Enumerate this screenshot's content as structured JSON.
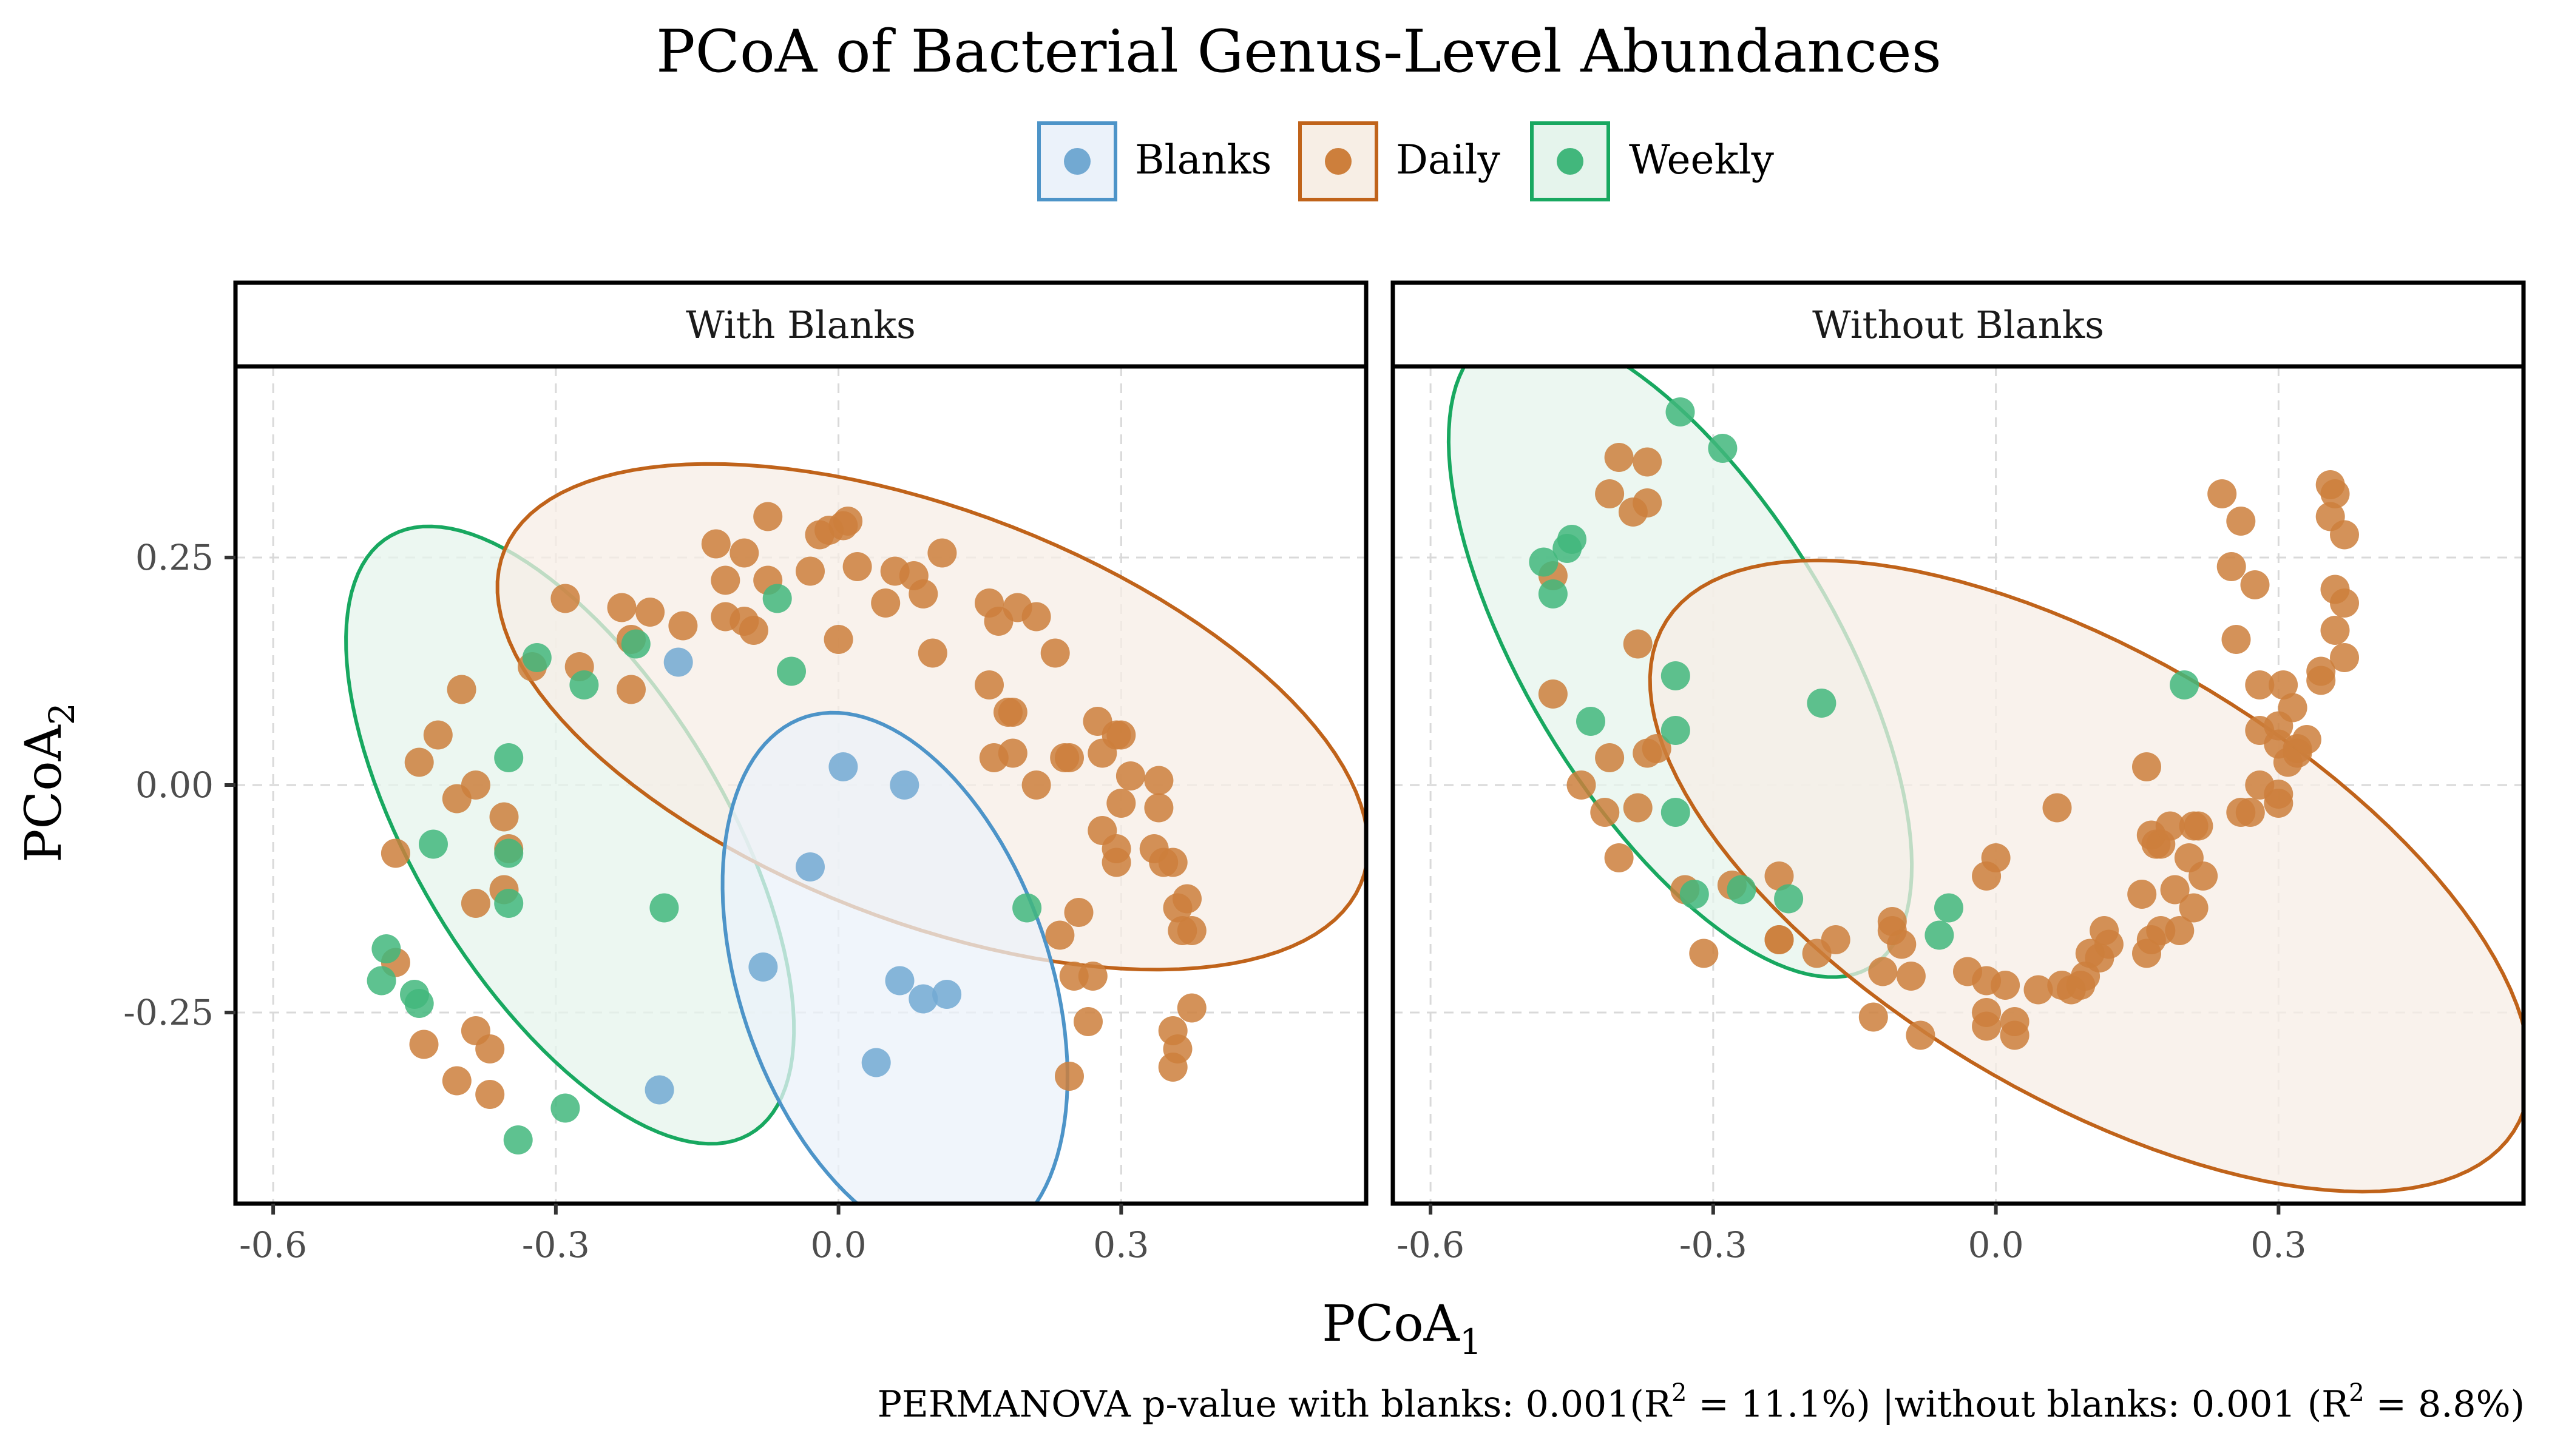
{
  "chart_data": {
    "type": "scatter",
    "title": "PCoA of Bacterial Genus-Level Abundances",
    "xlabel": "PCoA",
    "xlabel_sub": "1",
    "ylabel": "PCoA",
    "ylabel_sub": "2",
    "legend_position": "top",
    "grid": true,
    "xlim": [
      -0.64,
      0.56
    ],
    "ylim": [
      -0.46,
      0.46
    ],
    "x_ticks": [
      -0.6,
      -0.3,
      0.0,
      0.3
    ],
    "x_tick_labels": [
      "-0.6",
      "-0.3",
      "0.0",
      "0.3"
    ],
    "y_ticks": [
      -0.25,
      0.0,
      0.25
    ],
    "y_tick_labels": [
      "-0.25",
      "0.00",
      "0.25"
    ],
    "groups": [
      {
        "name": "Blanks",
        "color": "#4D94C8",
        "point_color": "#72A9D2",
        "fill": "#EBF2FA"
      },
      {
        "name": "Daily",
        "color": "#C0631A",
        "point_color": "#CD7F3C",
        "fill": "#F7EEE5"
      },
      {
        "name": "Weekly",
        "color": "#18A860",
        "point_color": "#42B77C",
        "fill": "#E5F4EC"
      }
    ],
    "caption": {
      "prefix": "PERMANOVA p-value with blanks: 0.001(R",
      "sup1": "2",
      "mid": " = 11.1%) |without blanks: 0.001 (R",
      "sup2": "2",
      "suffix": " = 8.8%)"
    },
    "panels": [
      {
        "label": "With Blanks",
        "ellipses": [
          {
            "group": "Weekly",
            "cx": -0.285,
            "cy": -0.055,
            "rx": 0.38,
            "ry": 0.165,
            "angle_deg": -60
          },
          {
            "group": "Daily",
            "cx": 0.1,
            "cy": 0.075,
            "rx": 0.49,
            "ry": 0.225,
            "angle_deg": -22
          },
          {
            "group": "Blanks",
            "cx": 0.06,
            "cy": -0.215,
            "rx": 0.305,
            "ry": 0.165,
            "angle_deg": -72
          }
        ],
        "points": {
          "Blanks": [
            [
              -0.17,
              0.135
            ],
            [
              0.005,
              0.02
            ],
            [
              -0.03,
              -0.09
            ],
            [
              0.07,
              0.0
            ],
            [
              -0.08,
              -0.2
            ],
            [
              0.065,
              -0.215
            ],
            [
              0.09,
              -0.235
            ],
            [
              0.115,
              -0.23
            ],
            [
              0.04,
              -0.305
            ],
            [
              -0.19,
              -0.335
            ]
          ],
          "Weekly": [
            [
              -0.065,
              0.205
            ],
            [
              -0.05,
              0.125
            ],
            [
              -0.32,
              0.14
            ],
            [
              -0.27,
              0.11
            ],
            [
              -0.215,
              0.155
            ],
            [
              -0.35,
              0.03
            ],
            [
              -0.43,
              -0.065
            ],
            [
              -0.35,
              -0.075
            ],
            [
              -0.35,
              -0.13
            ],
            [
              -0.185,
              -0.135
            ],
            [
              0.2,
              -0.135
            ],
            [
              -0.48,
              -0.18
            ],
            [
              -0.485,
              -0.215
            ],
            [
              -0.45,
              -0.23
            ],
            [
              -0.445,
              -0.24
            ],
            [
              -0.29,
              -0.355
            ],
            [
              -0.34,
              -0.39
            ]
          ],
          "Daily": [
            [
              -0.13,
              0.265
            ],
            [
              -0.1,
              0.255
            ],
            [
              -0.075,
              0.295
            ],
            [
              -0.02,
              0.275
            ],
            [
              -0.01,
              0.28
            ],
            [
              0.005,
              0.285
            ],
            [
              0.01,
              0.29
            ],
            [
              0.11,
              0.255
            ],
            [
              -0.12,
              0.225
            ],
            [
              -0.075,
              0.225
            ],
            [
              -0.03,
              0.235
            ],
            [
              0.02,
              0.24
            ],
            [
              0.06,
              0.235
            ],
            [
              0.08,
              0.23
            ],
            [
              0.09,
              0.21
            ],
            [
              -0.12,
              0.185
            ],
            [
              -0.1,
              0.18
            ],
            [
              -0.09,
              0.17
            ],
            [
              0.0,
              0.16
            ],
            [
              0.05,
              0.2
            ],
            [
              0.1,
              0.145
            ],
            [
              0.16,
              0.2
            ],
            [
              0.17,
              0.18
            ],
            [
              0.19,
              0.195
            ],
            [
              0.21,
              0.185
            ],
            [
              0.23,
              0.145
            ],
            [
              0.16,
              0.11
            ],
            [
              0.18,
              0.08
            ],
            [
              0.185,
              0.08
            ],
            [
              0.165,
              0.03
            ],
            [
              0.185,
              0.035
            ],
            [
              0.21,
              0.0
            ],
            [
              0.24,
              0.03
            ],
            [
              0.245,
              0.03
            ],
            [
              0.275,
              0.07
            ],
            [
              0.295,
              0.055
            ],
            [
              0.3,
              0.055
            ],
            [
              0.28,
              0.035
            ],
            [
              0.31,
              0.01
            ],
            [
              0.34,
              0.005
            ],
            [
              0.3,
              -0.02
            ],
            [
              0.34,
              -0.025
            ],
            [
              0.28,
              -0.05
            ],
            [
              0.295,
              -0.07
            ],
            [
              0.295,
              -0.085
            ],
            [
              0.335,
              -0.07
            ],
            [
              0.345,
              -0.085
            ],
            [
              0.355,
              -0.085
            ],
            [
              0.37,
              -0.125
            ],
            [
              0.375,
              -0.16
            ],
            [
              0.365,
              -0.16
            ],
            [
              0.36,
              -0.135
            ],
            [
              0.235,
              -0.165
            ],
            [
              0.255,
              -0.14
            ],
            [
              0.25,
              -0.21
            ],
            [
              0.27,
              -0.21
            ],
            [
              0.265,
              -0.26
            ],
            [
              0.245,
              -0.32
            ],
            [
              0.375,
              -0.245
            ],
            [
              0.355,
              -0.27
            ],
            [
              0.36,
              -0.29
            ],
            [
              0.355,
              -0.31
            ],
            [
              -0.29,
              0.205
            ],
            [
              -0.23,
              0.195
            ],
            [
              -0.2,
              0.19
            ],
            [
              -0.165,
              0.175
            ],
            [
              -0.275,
              0.13
            ],
            [
              -0.22,
              0.16
            ],
            [
              -0.22,
              0.105
            ],
            [
              -0.325,
              0.13
            ],
            [
              -0.4,
              0.105
            ],
            [
              -0.425,
              0.055
            ],
            [
              -0.445,
              0.025
            ],
            [
              -0.405,
              -0.015
            ],
            [
              -0.385,
              0.0
            ],
            [
              -0.355,
              -0.035
            ],
            [
              -0.35,
              -0.07
            ],
            [
              -0.47,
              -0.075
            ],
            [
              -0.385,
              -0.13
            ],
            [
              -0.355,
              -0.115
            ],
            [
              -0.47,
              -0.195
            ],
            [
              -0.44,
              -0.285
            ],
            [
              -0.385,
              -0.27
            ],
            [
              -0.37,
              -0.29
            ],
            [
              -0.405,
              -0.325
            ],
            [
              -0.37,
              -0.34
            ]
          ]
        }
      },
      {
        "label": "Without Blanks",
        "ellipses": [
          {
            "group": "Weekly",
            "cx": -0.335,
            "cy": 0.145,
            "rx": 0.4,
            "ry": 0.165,
            "angle_deg": -60
          },
          {
            "group": "Daily",
            "cx": 0.1,
            "cy": -0.1,
            "rx": 0.53,
            "ry": 0.24,
            "angle_deg": -32
          }
        ],
        "points": {
          "Weekly": [
            [
              -0.335,
              0.41
            ],
            [
              -0.29,
              0.37
            ],
            [
              -0.48,
              0.245
            ],
            [
              -0.47,
              0.21
            ],
            [
              -0.45,
              0.27
            ],
            [
              -0.455,
              0.26
            ],
            [
              -0.34,
              0.12
            ],
            [
              -0.43,
              0.07
            ],
            [
              -0.34,
              0.06
            ],
            [
              -0.34,
              -0.03
            ],
            [
              -0.185,
              0.09
            ],
            [
              -0.32,
              -0.12
            ],
            [
              -0.27,
              -0.115
            ],
            [
              -0.22,
              -0.125
            ],
            [
              -0.05,
              -0.135
            ],
            [
              -0.06,
              -0.165
            ],
            [
              0.2,
              0.11
            ]
          ],
          "Daily": [
            [
              -0.4,
              0.36
            ],
            [
              -0.37,
              0.355
            ],
            [
              -0.41,
              0.32
            ],
            [
              -0.37,
              0.31
            ],
            [
              -0.385,
              0.3
            ],
            [
              -0.47,
              0.23
            ],
            [
              -0.47,
              0.1
            ],
            [
              -0.38,
              0.155
            ],
            [
              -0.41,
              0.03
            ],
            [
              -0.37,
              0.035
            ],
            [
              -0.36,
              0.04
            ],
            [
              -0.44,
              0.0
            ],
            [
              -0.415,
              -0.03
            ],
            [
              -0.38,
              -0.025
            ],
            [
              -0.4,
              -0.08
            ],
            [
              -0.33,
              -0.115
            ],
            [
              -0.28,
              -0.11
            ],
            [
              -0.23,
              -0.1
            ],
            [
              -0.31,
              -0.185
            ],
            [
              -0.23,
              -0.17
            ],
            [
              -0.23,
              -0.17
            ],
            [
              -0.19,
              -0.185
            ],
            [
              -0.17,
              -0.17
            ],
            [
              -0.11,
              -0.15
            ],
            [
              -0.11,
              -0.16
            ],
            [
              -0.12,
              -0.205
            ],
            [
              -0.1,
              -0.175
            ],
            [
              -0.09,
              -0.21
            ],
            [
              -0.13,
              -0.255
            ],
            [
              -0.08,
              -0.275
            ],
            [
              -0.03,
              -0.205
            ],
            [
              -0.01,
              -0.215
            ],
            [
              0.01,
              -0.22
            ],
            [
              -0.01,
              -0.25
            ],
            [
              -0.01,
              -0.265
            ],
            [
              0.0,
              -0.08
            ],
            [
              -0.01,
              -0.1
            ],
            [
              0.02,
              -0.26
            ],
            [
              0.02,
              -0.275
            ],
            [
              0.045,
              -0.225
            ],
            [
              0.07,
              -0.22
            ],
            [
              0.08,
              -0.225
            ],
            [
              0.09,
              -0.22
            ],
            [
              0.065,
              -0.025
            ],
            [
              0.1,
              -0.185
            ],
            [
              0.11,
              -0.19
            ],
            [
              0.12,
              -0.175
            ],
            [
              0.095,
              -0.21
            ],
            [
              0.115,
              -0.16
            ],
            [
              0.16,
              -0.185
            ],
            [
              0.165,
              -0.17
            ],
            [
              0.175,
              -0.16
            ],
            [
              0.155,
              -0.12
            ],
            [
              0.19,
              -0.115
            ],
            [
              0.195,
              -0.16
            ],
            [
              0.21,
              -0.135
            ],
            [
              0.165,
              -0.055
            ],
            [
              0.17,
              -0.065
            ],
            [
              0.175,
              -0.065
            ],
            [
              0.205,
              -0.08
            ],
            [
              0.22,
              -0.1
            ],
            [
              0.16,
              0.02
            ],
            [
              0.185,
              -0.045
            ],
            [
              0.21,
              -0.045
            ],
            [
              0.215,
              -0.045
            ],
            [
              0.255,
              0.16
            ],
            [
              0.28,
              0.11
            ],
            [
              0.28,
              0.06
            ],
            [
              0.3,
              0.065
            ],
            [
              0.3,
              0.045
            ],
            [
              0.31,
              0.025
            ],
            [
              0.32,
              0.04
            ],
            [
              0.33,
              0.05
            ],
            [
              0.315,
              0.085
            ],
            [
              0.305,
              0.11
            ],
            [
              0.345,
              0.115
            ],
            [
              0.36,
              0.17
            ],
            [
              0.345,
              0.125
            ],
            [
              0.37,
              0.14
            ],
            [
              0.36,
              0.215
            ],
            [
              0.37,
              0.2
            ],
            [
              0.355,
              0.33
            ],
            [
              0.36,
              0.32
            ],
            [
              0.355,
              0.295
            ],
            [
              0.37,
              0.275
            ],
            [
              0.24,
              0.32
            ],
            [
              0.26,
              0.29
            ],
            [
              0.25,
              0.24
            ],
            [
              0.275,
              0.22
            ],
            [
              0.28,
              0.0
            ],
            [
              0.3,
              -0.01
            ],
            [
              0.26,
              -0.03
            ],
            [
              0.27,
              -0.03
            ],
            [
              0.3,
              -0.02
            ],
            [
              0.32,
              0.035
            ]
          ]
        }
      }
    ]
  }
}
